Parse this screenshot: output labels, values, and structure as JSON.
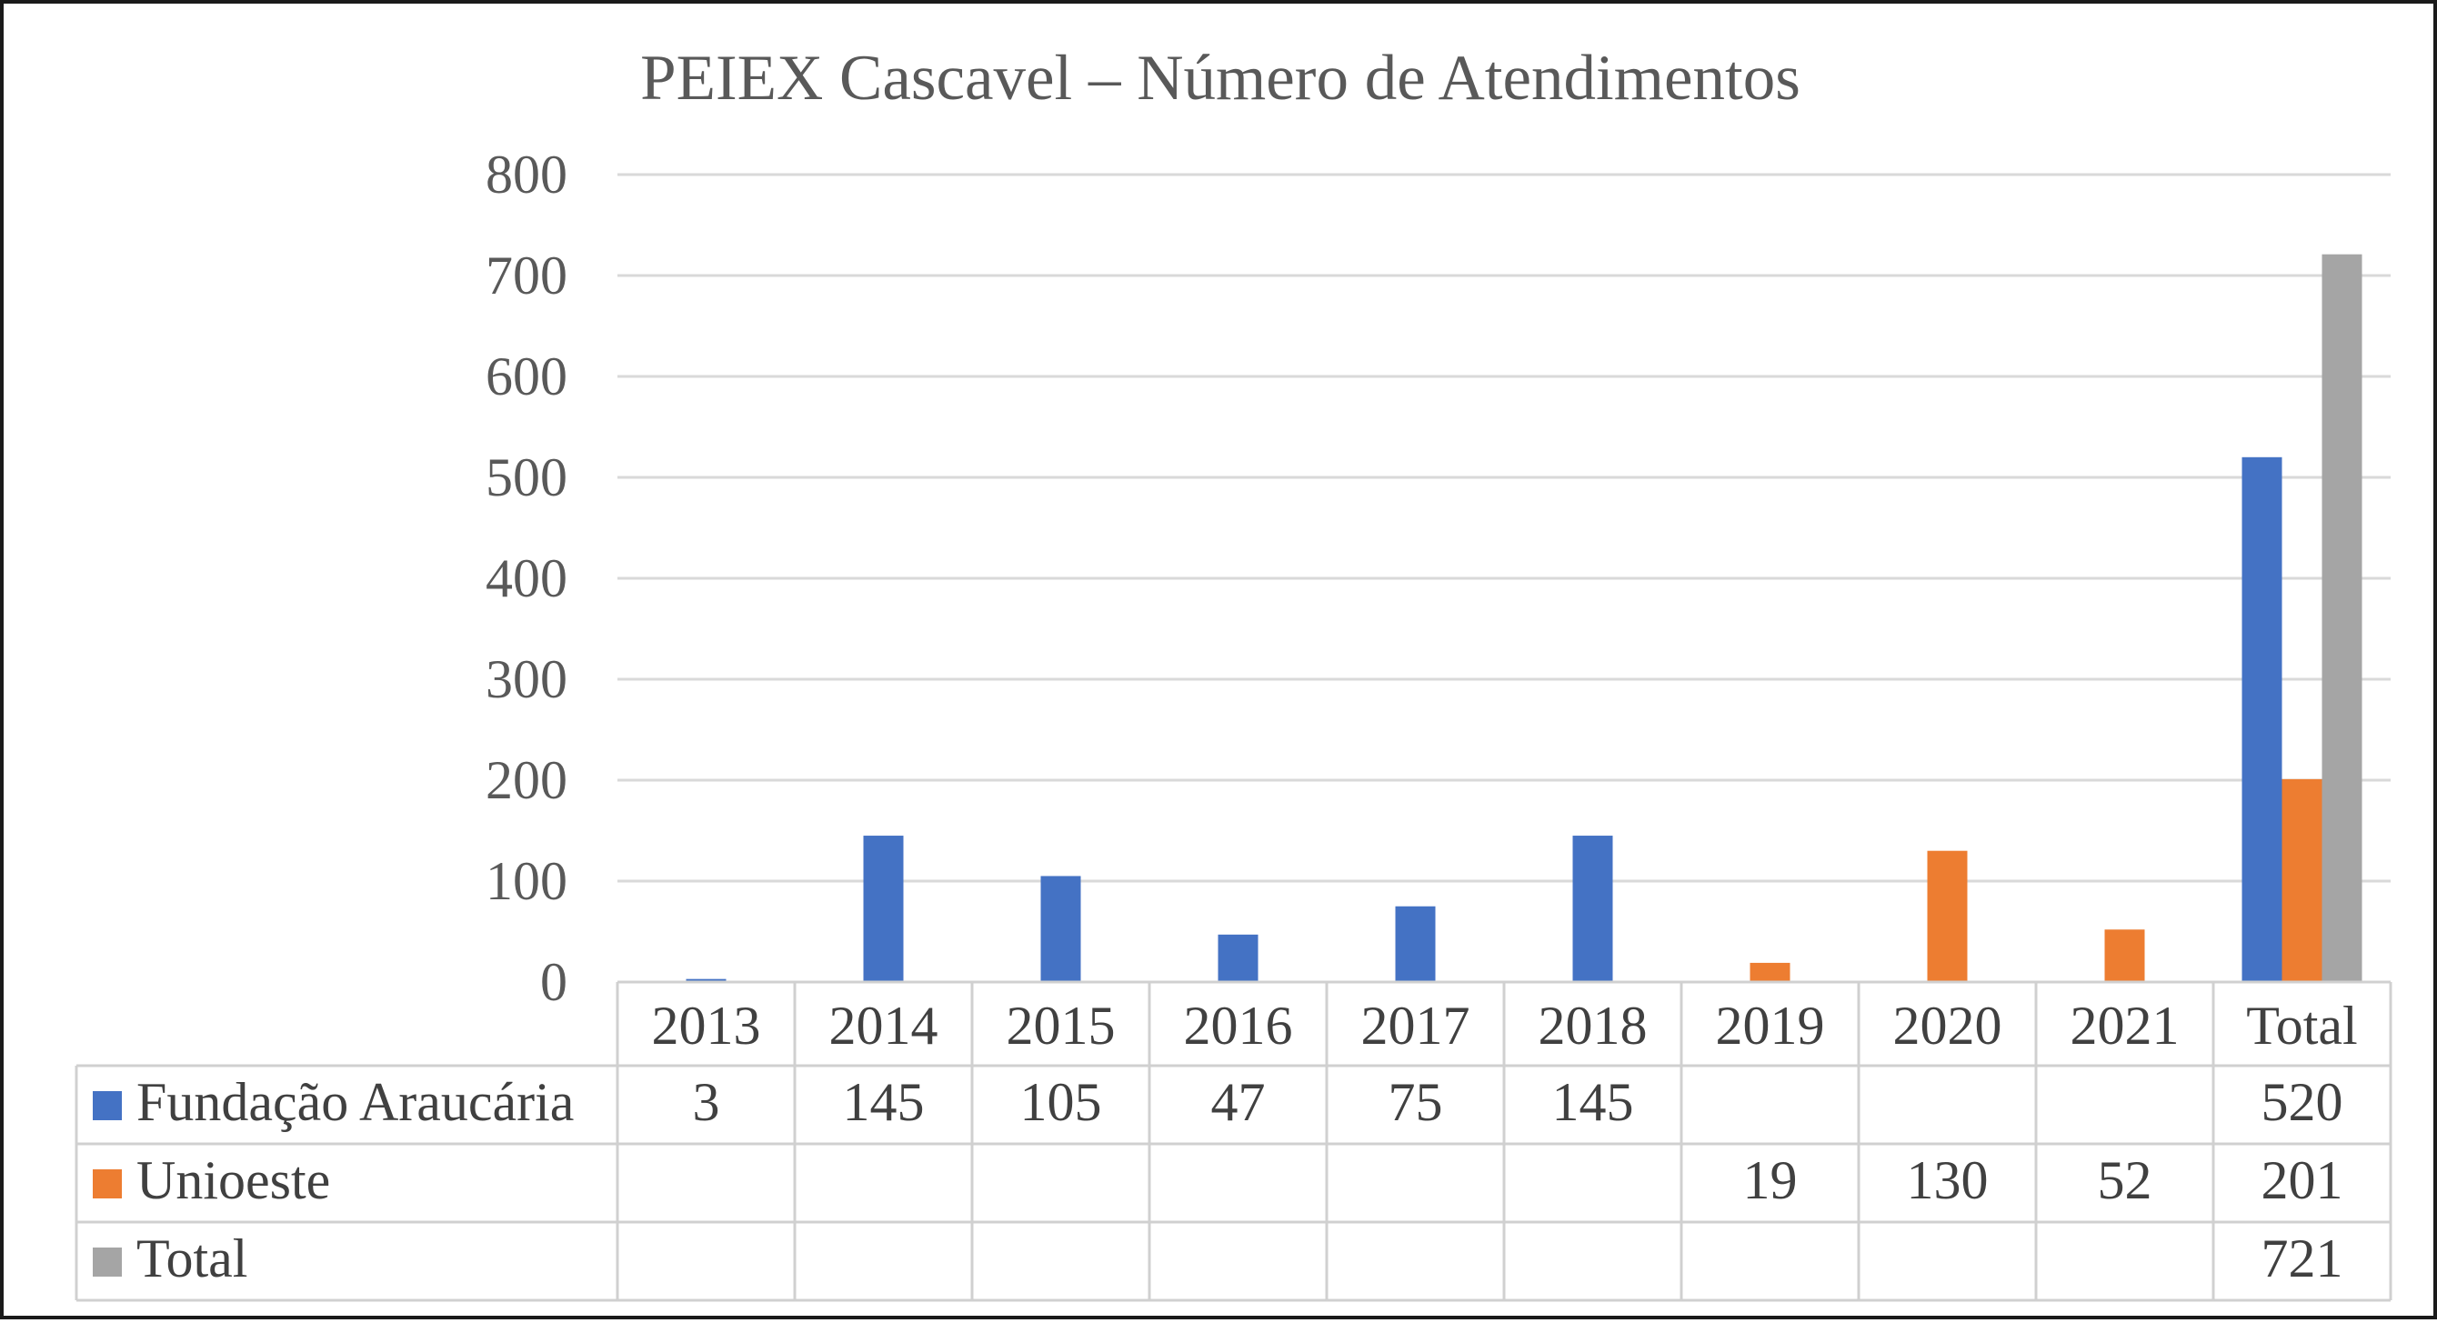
{
  "chart_data": {
    "type": "bar",
    "title": "PEIEX Cascavel – Número de Atendimentos",
    "categories": [
      "2013",
      "2014",
      "2015",
      "2016",
      "2017",
      "2018",
      "2019",
      "2020",
      "2021",
      "Total"
    ],
    "ylim": [
      0,
      800
    ],
    "yticks": [
      0,
      100,
      200,
      300,
      400,
      500,
      600,
      700,
      800
    ],
    "grid": true,
    "legend": "data-table-below",
    "series": [
      {
        "name": "Fundação Araucária",
        "color": "#4472c4",
        "values": [
          3,
          145,
          105,
          47,
          75,
          145,
          null,
          null,
          null,
          520
        ]
      },
      {
        "name": "Unioeste",
        "color": "#ed7d31",
        "values": [
          null,
          null,
          null,
          null,
          null,
          null,
          19,
          130,
          52,
          201
        ]
      },
      {
        "name": "Total",
        "color": "#a5a5a5",
        "values": [
          null,
          null,
          null,
          null,
          null,
          null,
          null,
          null,
          null,
          721
        ]
      }
    ]
  }
}
